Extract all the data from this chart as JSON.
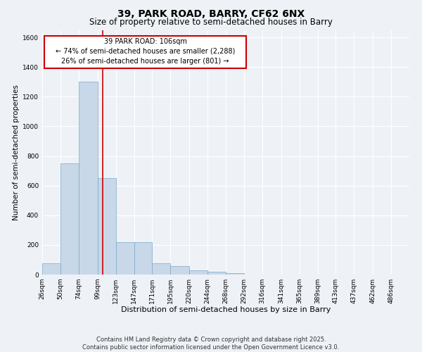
{
  "title1": "39, PARK ROAD, BARRY, CF62 6NX",
  "title2": "Size of property relative to semi-detached houses in Barry",
  "xlabel": "Distribution of semi-detached houses by size in Barry",
  "ylabel": "Number of semi-detached properties",
  "footnote": "Contains HM Land Registry data © Crown copyright and database right 2025.\nContains public sector information licensed under the Open Government Licence v3.0.",
  "bar_edges": [
    26,
    50,
    74,
    99,
    123,
    147,
    171,
    195,
    220,
    244,
    268,
    292,
    316,
    341,
    365,
    389,
    413,
    437,
    462,
    486,
    510
  ],
  "bar_heights": [
    75,
    750,
    1300,
    650,
    220,
    220,
    75,
    55,
    30,
    20,
    10,
    0,
    0,
    0,
    0,
    0,
    0,
    0,
    0,
    0
  ],
  "bar_color": "#c8d8e8",
  "bar_edge_color": "#7aa8c8",
  "property_size": 106,
  "red_line_color": "#cc0000",
  "annotation_box_color": "#cc0000",
  "annotation_text_line1": "39 PARK ROAD: 106sqm",
  "annotation_text_line2": "← 74% of semi-detached houses are smaller (2,288)",
  "annotation_text_line3": "26% of semi-detached houses are larger (801) →",
  "ylim": [
    0,
    1650
  ],
  "yticks": [
    0,
    200,
    400,
    600,
    800,
    1000,
    1200,
    1400,
    1600
  ],
  "bg_color": "#eef2f7",
  "grid_color": "#ffffff",
  "title1_fontsize": 10,
  "title2_fontsize": 8.5,
  "annotation_fontsize": 7,
  "tick_fontsize": 6.5,
  "xlabel_fontsize": 8,
  "ylabel_fontsize": 7.5,
  "footnote_fontsize": 6
}
